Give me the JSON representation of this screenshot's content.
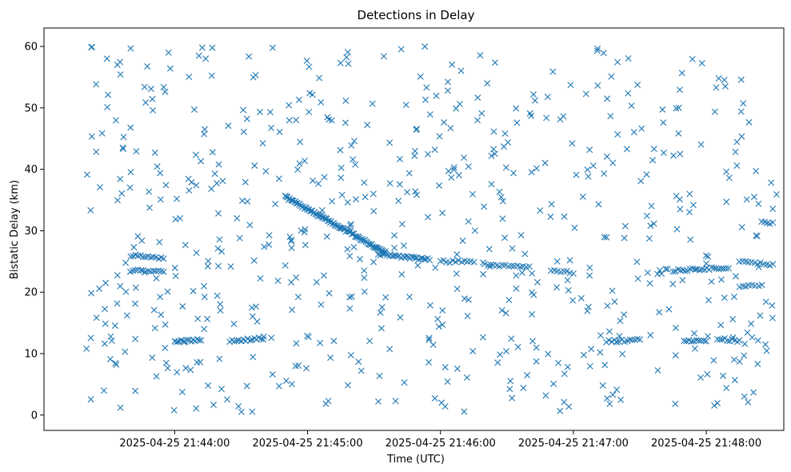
{
  "chart_data": {
    "type": "scatter",
    "title": "Detections in Delay",
    "xlabel": "Time (UTC)",
    "ylabel": "Bistatic Delay (km)",
    "x_range_seconds_of_day": [
      78181,
      78515
    ],
    "ylim": [
      -2.5,
      63.0
    ],
    "xticks": [
      {
        "t": 78240,
        "label": "2025-04-25 21:44:00"
      },
      {
        "t": 78300,
        "label": "2025-04-25 21:45:00"
      },
      {
        "t": 78360,
        "label": "2025-04-25 21:46:00"
      },
      {
        "t": 78420,
        "label": "2025-04-25 21:47:00"
      },
      {
        "t": 78480,
        "label": "2025-04-25 21:48:00"
      }
    ],
    "yticks": [
      0,
      10,
      20,
      30,
      40,
      50,
      60
    ],
    "grid": false,
    "legend": "none",
    "marker": "x",
    "marker_color": "#1f77b4",
    "tracks": [
      {
        "t_start": "2025-04-25 21:44:50",
        "y_start": 35.5,
        "t_end": "2025-04-25 21:45:35",
        "y_end": 26.5,
        "n": 90
      },
      {
        "t_start": "2025-04-25 21:45:32",
        "y_start": 26.2,
        "t_end": "2025-04-25 21:45:55",
        "y_end": 25.3,
        "n": 30
      },
      {
        "t_start": "2025-04-25 21:43:40",
        "y_start": 26.0,
        "t_end": "2025-04-25 21:43:55",
        "y_end": 25.5,
        "n": 14
      },
      {
        "t_start": "2025-04-25 21:43:40",
        "y_start": 23.5,
        "t_end": "2025-04-25 21:43:55",
        "y_end": 23.5,
        "n": 14
      },
      {
        "t_start": "2025-04-25 21:44:00",
        "y_start": 12.0,
        "t_end": "2025-04-25 21:44:12",
        "y_end": 12.2,
        "n": 14
      },
      {
        "t_start": "2025-04-25 21:44:25",
        "y_start": 12.0,
        "t_end": "2025-04-25 21:44:40",
        "y_end": 12.5,
        "n": 16
      },
      {
        "t_start": "2025-04-25 21:46:00",
        "y_start": 25.0,
        "t_end": "2025-04-25 21:46:15",
        "y_end": 25.0,
        "n": 12
      },
      {
        "t_start": "2025-04-25 21:46:20",
        "y_start": 24.5,
        "t_end": "2025-04-25 21:46:40",
        "y_end": 24.2,
        "n": 16
      },
      {
        "t_start": "2025-04-25 21:46:50",
        "y_start": 23.5,
        "t_end": "2025-04-25 21:47:00",
        "y_end": 23.2,
        "n": 8
      },
      {
        "t_start": "2025-04-25 21:47:15",
        "y_start": 12.0,
        "t_end": "2025-04-25 21:47:30",
        "y_end": 12.2,
        "n": 14
      },
      {
        "t_start": "2025-04-25 21:47:45",
        "y_start": 23.5,
        "t_end": "2025-04-25 21:48:10",
        "y_end": 24.0,
        "n": 24
      },
      {
        "t_start": "2025-04-25 21:47:50",
        "y_start": 12.0,
        "t_end": "2025-04-25 21:48:00",
        "y_end": 12.0,
        "n": 10
      },
      {
        "t_start": "2025-04-25 21:48:05",
        "y_start": 12.5,
        "t_end": "2025-04-25 21:48:15",
        "y_end": 12.0,
        "n": 10
      },
      {
        "t_start": "2025-04-25 21:48:15",
        "y_start": 25.0,
        "t_end": "2025-04-25 21:48:30",
        "y_end": 24.5,
        "n": 12
      },
      {
        "t_start": "2025-04-25 21:48:15",
        "y_start": 21.0,
        "t_end": "2025-04-25 21:48:25",
        "y_end": 21.0,
        "n": 8
      },
      {
        "t_start": "2025-04-25 21:48:25",
        "y_start": 31.5,
        "t_end": "2025-04-25 21:48:30",
        "y_end": 31.2,
        "n": 5
      }
    ],
    "clutter": {
      "t_range": [
        "2025-04-25 21:43:20",
        "2025-04-25 21:48:32"
      ],
      "y_range": [
        0.5,
        60.0
      ],
      "n": 640,
      "seed": 7
    }
  }
}
